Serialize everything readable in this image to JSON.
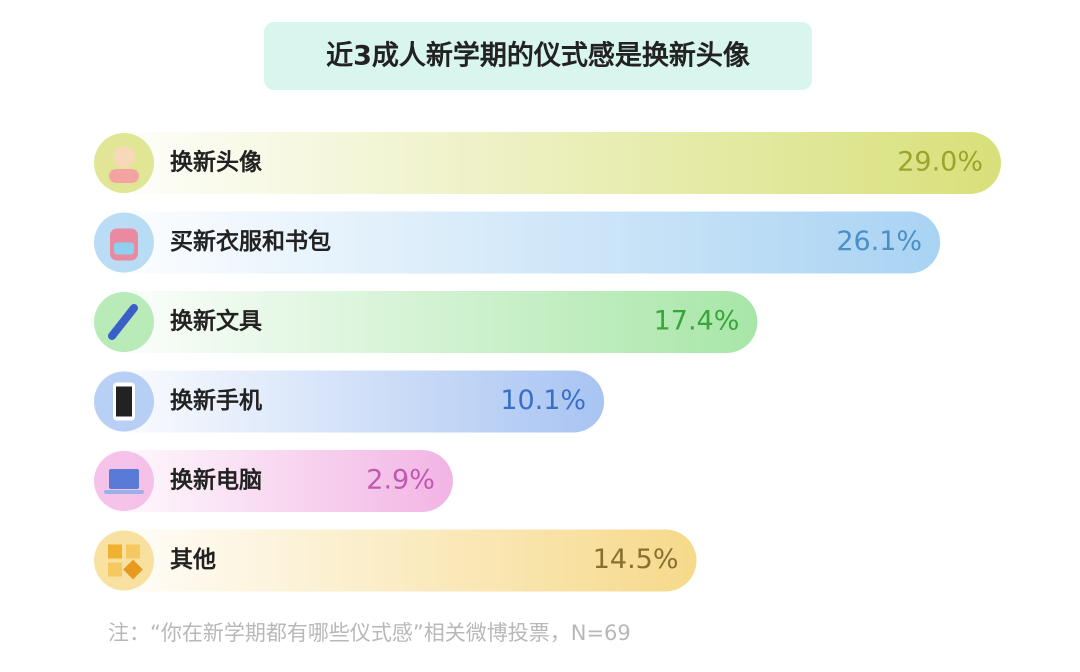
{
  "chart_data": {
    "type": "bar",
    "orientation": "horizontal",
    "title": "近3成人新学期的仪式感是换新头像",
    "categories": [
      "换新头像",
      "买新衣服和书包",
      "换新文具",
      "换新手机",
      "换新电脑",
      "其他"
    ],
    "values": [
      29.0,
      26.1,
      17.4,
      10.1,
      2.9,
      14.5
    ],
    "value_labels": [
      "29.0%",
      "26.1%",
      "17.4%",
      "10.1%",
      "2.9%",
      "14.5%"
    ],
    "colors": [
      "#d8e07a",
      "#a9d3f3",
      "#a8e6a8",
      "#a8c4f2",
      "#f2b4e4",
      "#f6d98a"
    ],
    "label_colors": [
      "#9aa52a",
      "#4a8fc6",
      "#3aa53a",
      "#3a6fc8",
      "#c05ab0",
      "#8a7030"
    ],
    "note": "注：“你在新学期都有哪些仪式感”相关微博投票，N=69"
  }
}
